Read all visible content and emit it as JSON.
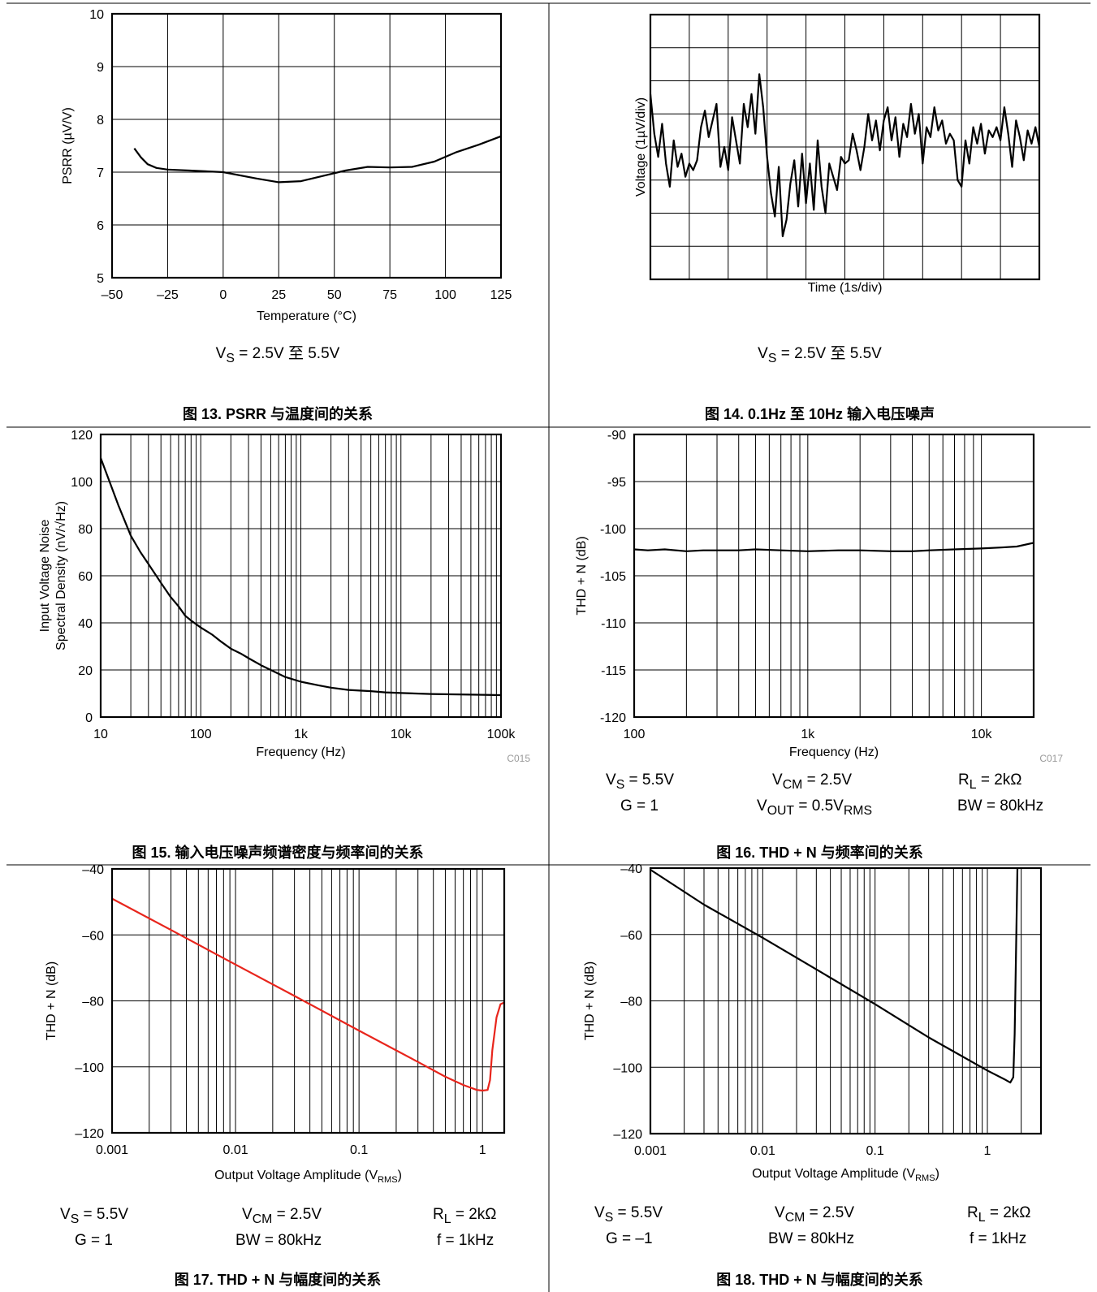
{
  "figures": [
    {
      "caption": "图 13. PSRR 与温度间的关系",
      "conditions": [
        [
          "V<sub>S</sub> = 2.5V 至 5.5V"
        ]
      ],
      "code": ""
    },
    {
      "caption": "图 14. 0.1Hz 至 10Hz 输入电压噪声",
      "conditions": [
        [
          "V<sub>S</sub> = 2.5V 至 5.5V"
        ]
      ],
      "code": ""
    },
    {
      "caption": "图 15. 输入电压噪声频谱密度与频率间的关系",
      "conditions": [],
      "code": "C015"
    },
    {
      "caption": "图 16. THD + N 与频率间的关系",
      "conditions": [
        [
          "V<sub>S</sub> = 5.5V",
          "V<sub>CM</sub> = 2.5V",
          "R<sub>L</sub> = 2kΩ"
        ],
        [
          "G = 1",
          "V<sub>OUT</sub> = 0.5V<sub>RMS</sub>",
          "BW = 80kHz"
        ]
      ],
      "code": "C017"
    },
    {
      "caption": "图 17. THD + N 与幅度间的关系",
      "conditions": [
        [
          "V<sub>S</sub> = 5.5V",
          "V<sub>CM</sub> = 2.5V",
          "R<sub>L</sub> = 2kΩ"
        ],
        [
          "G = 1",
          "BW = 80kHz",
          "f = 1kHz"
        ]
      ],
      "code": ""
    },
    {
      "caption": "图 18. THD + N 与幅度间的关系",
      "conditions": [
        [
          "V<sub>S</sub> = 5.5V",
          "V<sub>CM</sub> = 2.5V",
          "R<sub>L</sub> = 2kΩ"
        ],
        [
          "G = –1",
          "BW = 80kHz",
          "f = 1kHz"
        ]
      ],
      "code": ""
    }
  ],
  "chart_data": [
    {
      "type": "line",
      "xlabel": "Temperature (°C)",
      "ylabel": "PSRR (µV/V)",
      "xscale": "linear",
      "xlim": [
        -50,
        125
      ],
      "ylim": [
        5,
        10
      ],
      "xticks": [
        -50,
        -25,
        0,
        25,
        50,
        75,
        100,
        125
      ],
      "xtick_labels": [
        "–50",
        "–25",
        "0",
        "25",
        "50",
        "75",
        "100",
        "125"
      ],
      "yticks": [
        5,
        6,
        7,
        8,
        9,
        10
      ],
      "ytick_labels": [
        "5",
        "6",
        "7",
        "8",
        "9",
        "10"
      ],
      "grid": true,
      "series": [
        {
          "color": "#000000",
          "x": [
            -40,
            -37,
            -34,
            -30,
            -25,
            -15,
            0,
            15,
            25,
            35,
            45,
            55,
            65,
            75,
            85,
            95,
            105,
            115,
            125
          ],
          "y": [
            7.45,
            7.28,
            7.15,
            7.08,
            7.05,
            7.03,
            7.0,
            6.88,
            6.81,
            6.83,
            6.93,
            7.03,
            7.1,
            7.09,
            7.1,
            7.2,
            7.38,
            7.52,
            7.68
          ]
        }
      ]
    },
    {
      "type": "line",
      "xlabel": "Time (1s/div)",
      "ylabel": "Voltage (1µV/div)",
      "xscale": "linear",
      "xlim": [
        0,
        10
      ],
      "ylim": [
        -4,
        4
      ],
      "xticks": [
        0,
        1,
        2,
        3,
        4,
        5,
        6,
        7,
        8,
        9,
        10
      ],
      "xtick_labels": [],
      "yticks": [
        -4,
        -3,
        -2,
        -1,
        0,
        1,
        2,
        3,
        4
      ],
      "ytick_labels": [],
      "grid": true,
      "series": [
        {
          "color": "#000000",
          "x": [
            0.0,
            0.1,
            0.2,
            0.3,
            0.4,
            0.5,
            0.6,
            0.7,
            0.8,
            0.9,
            1.0,
            1.1,
            1.2,
            1.3,
            1.4,
            1.5,
            1.6,
            1.7,
            1.8,
            1.9,
            2.0,
            2.1,
            2.2,
            2.3,
            2.4,
            2.5,
            2.6,
            2.7,
            2.8,
            2.9,
            3.0,
            3.1,
            3.2,
            3.3,
            3.4,
            3.5,
            3.6,
            3.7,
            3.8,
            3.9,
            4.0,
            4.1,
            4.2,
            4.3,
            4.4,
            4.5,
            4.6,
            4.7,
            4.8,
            4.9,
            5.0,
            5.1,
            5.2,
            5.3,
            5.4,
            5.5,
            5.6,
            5.7,
            5.8,
            5.9,
            6.0,
            6.1,
            6.2,
            6.3,
            6.4,
            6.5,
            6.6,
            6.7,
            6.8,
            6.9,
            7.0,
            7.1,
            7.2,
            7.3,
            7.4,
            7.5,
            7.6,
            7.7,
            7.8,
            7.9,
            8.0,
            8.1,
            8.2,
            8.3,
            8.4,
            8.5,
            8.6,
            8.7,
            8.8,
            8.9,
            9.0,
            9.1,
            9.2,
            9.3,
            9.4,
            9.5,
            9.6,
            9.7,
            9.8,
            9.9,
            10.0
          ],
          "y": [
            1.6,
            0.4,
            -0.3,
            0.7,
            -0.5,
            -1.2,
            0.2,
            -0.6,
            -0.2,
            -0.9,
            -0.5,
            -0.7,
            -0.4,
            0.6,
            1.1,
            0.3,
            0.8,
            1.3,
            -0.6,
            0.0,
            -0.7,
            0.9,
            0.2,
            -0.5,
            1.3,
            0.6,
            1.6,
            0.4,
            2.2,
            1.2,
            -0.3,
            -1.4,
            -2.1,
            -0.6,
            -2.7,
            -2.2,
            -1.1,
            -0.4,
            -1.8,
            -0.2,
            -1.7,
            -0.5,
            -1.9,
            0.2,
            -1.2,
            -2.0,
            -0.5,
            -0.9,
            -1.3,
            -0.3,
            -0.5,
            -0.4,
            0.4,
            -0.1,
            -0.7,
            0.0,
            1.0,
            0.2,
            0.8,
            -0.1,
            0.8,
            1.2,
            0.2,
            0.9,
            -0.3,
            0.7,
            0.3,
            1.3,
            0.4,
            1.0,
            -0.5,
            0.6,
            0.3,
            1.2,
            0.5,
            0.8,
            0.1,
            0.4,
            0.2,
            -1.0,
            -1.2,
            0.2,
            -0.5,
            0.6,
            0.1,
            0.7,
            -0.2,
            0.5,
            0.3,
            0.6,
            0.2,
            1.2,
            0.4,
            -0.6,
            0.8,
            0.3,
            -0.4,
            0.5,
            0.1,
            0.6,
            0.0
          ]
        }
      ]
    },
    {
      "type": "line",
      "xlabel": "Frequency (Hz)",
      "ylabel": "Input Voltage Noise\nSpectral Density (nV/√Hz)",
      "xscale": "log",
      "xlim": [
        10,
        100000
      ],
      "ylim": [
        0,
        120
      ],
      "xticks": [
        10,
        100,
        1000,
        10000,
        100000
      ],
      "xtick_labels": [
        "10",
        "100",
        "1k",
        "10k",
        "100k"
      ],
      "yticks": [
        0,
        20,
        40,
        60,
        80,
        100,
        120
      ],
      "ytick_labels": [
        "0",
        "20",
        "40",
        "60",
        "80",
        "100",
        "120"
      ],
      "grid": true,
      "series": [
        {
          "color": "#000000",
          "x": [
            10,
            12,
            15,
            20,
            25,
            30,
            40,
            50,
            60,
            70,
            80,
            100,
            130,
            160,
            200,
            250,
            300,
            400,
            500,
            700,
            1000,
            1500,
            2000,
            3000,
            5000,
            7000,
            10000,
            20000,
            50000,
            100000
          ],
          "y": [
            110,
            101,
            90,
            77,
            70,
            65,
            57,
            51,
            47,
            43,
            41,
            38,
            35,
            32,
            29,
            27,
            25,
            22,
            20,
            17,
            15,
            13.5,
            12.5,
            11.5,
            11,
            10.5,
            10.2,
            9.8,
            9.5,
            9.3
          ]
        }
      ]
    },
    {
      "type": "line",
      "xlabel": "Frequency (Hz)",
      "ylabel": "THD + N (dB)",
      "xscale": "log",
      "xlim": [
        100,
        20000
      ],
      "ylim": [
        -120,
        -90
      ],
      "xticks": [
        100,
        1000,
        10000
      ],
      "xtick_labels": [
        "100",
        "1k",
        "10k"
      ],
      "yticks": [
        -120,
        -115,
        -110,
        -105,
        -100,
        -95,
        -90
      ],
      "ytick_labels": [
        "-120",
        "-115",
        "-110",
        "-105",
        "-100",
        "-95",
        "-90"
      ],
      "grid": true,
      "series": [
        {
          "color": "#000000",
          "x": [
            100,
            120,
            150,
            200,
            250,
            300,
            400,
            500,
            700,
            1000,
            1500,
            2000,
            3000,
            4000,
            5000,
            7000,
            10000,
            13000,
            16000,
            20000
          ],
          "y": [
            -102.2,
            -102.3,
            -102.2,
            -102.4,
            -102.3,
            -102.3,
            -102.3,
            -102.2,
            -102.3,
            -102.4,
            -102.3,
            -102.3,
            -102.4,
            -102.4,
            -102.3,
            -102.2,
            -102.1,
            -102.0,
            -101.9,
            -101.5
          ]
        }
      ]
    },
    {
      "type": "line",
      "xlabel": "Output Voltage Amplitude (V<tspan font-size='11' dy='4'>RMS</tspan><tspan dy='-4'>)</tspan>",
      "ylabel": "THD + N (dB)",
      "xscale": "log",
      "xlim": [
        0.001,
        1.5
      ],
      "ylim": [
        -120,
        -40
      ],
      "xticks": [
        0.001,
        0.01,
        0.1,
        1
      ],
      "xtick_labels": [
        "0.001",
        "0.01",
        "0.1",
        "1"
      ],
      "yticks": [
        -120,
        -100,
        -80,
        -60,
        -40
      ],
      "ytick_labels": [
        "–120",
        "–100",
        "–80",
        "–60",
        "–40"
      ],
      "grid": true,
      "series": [
        {
          "color": "#e8251c",
          "x": [
            0.001,
            0.003,
            0.01,
            0.03,
            0.1,
            0.3,
            0.5,
            0.7,
            0.9,
            1.0,
            1.1,
            1.15,
            1.2,
            1.3,
            1.4,
            1.5
          ],
          "y": [
            -49,
            -58.5,
            -69,
            -78.5,
            -89,
            -98.5,
            -103,
            -105.5,
            -107,
            -107.2,
            -107,
            -104,
            -95,
            -85,
            -81,
            -80.5
          ]
        }
      ]
    },
    {
      "type": "line",
      "xlabel": "Output Voltage Amplitude (V<tspan font-size='11' dy='4'>RMS</tspan><tspan dy='-4'>)</tspan>",
      "ylabel": "THD + N (dB)",
      "xscale": "log",
      "xlim": [
        0.001,
        3
      ],
      "ylim": [
        -120,
        -40
      ],
      "xticks": [
        0.001,
        0.01,
        0.1,
        1
      ],
      "xtick_labels": [
        "0.001",
        "0.01",
        "0.1",
        "1"
      ],
      "yticks": [
        -120,
        -100,
        -80,
        -60,
        -40
      ],
      "ytick_labels": [
        "–120",
        "–100",
        "–80",
        "–60",
        "–40"
      ],
      "grid": true,
      "series": [
        {
          "color": "#000000",
          "x": [
            0.001,
            0.003,
            0.01,
            0.03,
            0.1,
            0.3,
            1.0,
            1.4,
            1.6,
            1.7,
            1.75,
            1.8,
            1.85
          ],
          "y": [
            -40.5,
            -51,
            -61,
            -70.5,
            -81,
            -91,
            -101,
            -103.5,
            -104.6,
            -103,
            -90,
            -65,
            -40
          ]
        }
      ]
    }
  ]
}
